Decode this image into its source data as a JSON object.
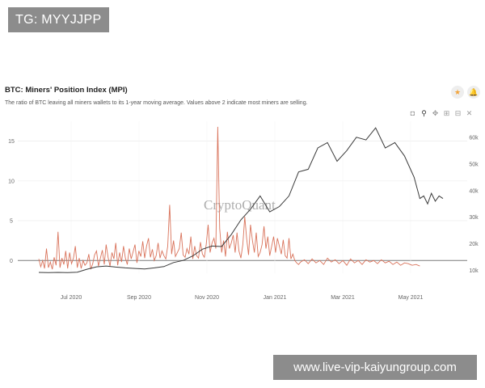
{
  "badges": {
    "telegram": "TG: MYYJJPP",
    "url": "www.live-vip-kaiyungroup.com"
  },
  "header": {
    "star_icon": "star-icon",
    "bell_icon": "bell-icon",
    "toolbar_icons": [
      "camera-icon",
      "zoom-icon",
      "pan-icon",
      "zoom-in-icon",
      "zoom-out-icon",
      "reset-axes-icon"
    ]
  },
  "chart_data": {
    "type": "line",
    "title": "BTC: Miners' Position Index (MPI)",
    "subtitle": "The ratio of BTC leaving all miners wallets to its 1-year moving average. Values above 2 indicate most miners are selling.",
    "watermark": "CryptoQuant",
    "x_ticks": [
      "Jul 2020",
      "Sep 2020",
      "Nov 2020",
      "Jan 2021",
      "Mar 2021",
      "May 2021"
    ],
    "y_left_ticks": [
      0,
      5,
      10,
      15
    ],
    "y_right_ticks": [
      "10k",
      "20k",
      "30k",
      "40k",
      "50k",
      "60k"
    ],
    "y_left_range": [
      -1.6,
      17.5
    ],
    "y_right_range": [
      9000,
      66000
    ],
    "x_range": [
      0,
      14
    ],
    "grid": true,
    "colors": {
      "mpi": "#d9735b",
      "price": "#3a3a3a"
    },
    "series": [
      {
        "axis": "left",
        "x": [
          0.0,
          0.1,
          0.2,
          0.3,
          0.4,
          0.5,
          0.6,
          0.7,
          0.8,
          0.9,
          1.0,
          1.1,
          1.2,
          1.3,
          1.4,
          1.5,
          1.6,
          1.7,
          1.8,
          1.9,
          2.0,
          2.1,
          2.2,
          2.3,
          2.4,
          2.5,
          2.6,
          2.7,
          2.8,
          2.9,
          3.0,
          3.1,
          3.2,
          3.3,
          3.4,
          3.5,
          3.6,
          3.7,
          3.8,
          3.9,
          4.0,
          4.1,
          4.2,
          4.3,
          4.4,
          4.5,
          4.6,
          4.7,
          4.8,
          4.9,
          5.0,
          5.1,
          5.2,
          5.3,
          5.4,
          5.5,
          5.6,
          5.7,
          5.8,
          5.9,
          6.0,
          6.1,
          6.2,
          6.3,
          6.4,
          6.5,
          6.6,
          6.7,
          6.8,
          6.9,
          7.0,
          7.1,
          7.2,
          7.3,
          7.4,
          7.5,
          7.6,
          7.7,
          7.8,
          7.9,
          8.0,
          8.1,
          8.2,
          8.3,
          8.4,
          8.5,
          8.6,
          8.7,
          8.8,
          8.9,
          9.0,
          9.1,
          9.2,
          9.3,
          9.4,
          9.5,
          9.6,
          9.7,
          9.8,
          9.9,
          10.0,
          10.1,
          10.2,
          10.3,
          10.4,
          10.5,
          10.6,
          10.7,
          10.8,
          10.9,
          11.0,
          11.1,
          11.2,
          11.3,
          11.4,
          11.5,
          11.6,
          11.7,
          11.8,
          11.9,
          12.0,
          12.1,
          12.2,
          12.3,
          12.4,
          12.5,
          12.6,
          12.7,
          12.8,
          12.9,
          13.0,
          13.1,
          13.2,
          13.3,
          13.4,
          13.5
        ],
        "values": [
          0.2,
          -0.8,
          0.0,
          -1.0,
          1.5,
          -0.9,
          -0.2,
          -1.1,
          0.4,
          -0.6,
          3.6,
          -0.9,
          0.3,
          -0.5,
          1.2,
          -1.0,
          1.0,
          -0.4,
          0.3,
          1.8,
          -0.9,
          0.3,
          -1.0,
          0.0,
          -0.6,
          -0.3,
          0.8,
          -1.1,
          -0.4,
          0.7,
          1.2,
          -0.7,
          0.3,
          1.3,
          -0.5,
          2.0,
          0.4,
          -0.7,
          1.0,
          0.2,
          2.2,
          -0.6,
          1.0,
          -0.2,
          1.8,
          0.3,
          -0.5,
          1.5,
          0.2,
          1.1,
          2.0,
          -0.3,
          1.2,
          0.5,
          2.4,
          0.3,
          1.8,
          2.8,
          0.4,
          1.4,
          0.0,
          0.6,
          2.2,
          0.3,
          1.2,
          0.6,
          0.2,
          1.8,
          7.0,
          0.8,
          2.5,
          0.5,
          1.0,
          1.5,
          3.5,
          0.7,
          0.4,
          1.5,
          0.8,
          3.0,
          0.2,
          1.8,
          0.6,
          0.3,
          2.3,
          0.8,
          0.4,
          2.0,
          4.5,
          1.0,
          2.2,
          2.8,
          1.5,
          16.8,
          4.0,
          1.0,
          2.5,
          0.5,
          3.6,
          1.5,
          2.2,
          3.2,
          1.0,
          3.5,
          1.2,
          0.3,
          2.0,
          5.5,
          2.8,
          0.7,
          4.5,
          2.5,
          1.0,
          3.5,
          0.5,
          1.0,
          2.0,
          4.3,
          1.5,
          3.0,
          0.6,
          1.8,
          3.0,
          1.0,
          2.8,
          1.8,
          0.8,
          2.6,
          0.6,
          0.3,
          2.8,
          0.2,
          0.8,
          0.0,
          -0.3,
          -0.5
        ],
        "x_note": "see extended arrays below"
      }
    ],
    "mpi_x": [
      0.0,
      0.1,
      0.2,
      0.3,
      0.4,
      0.5,
      0.6,
      0.7,
      0.8,
      0.9,
      1.0,
      1.1,
      1.2,
      1.3,
      1.4,
      1.5,
      1.6,
      1.7,
      1.8,
      1.9,
      2.0,
      2.1,
      2.2,
      2.3,
      2.4,
      2.5,
      2.6,
      2.7,
      2.8,
      2.9,
      3.0,
      3.1,
      3.2,
      3.3,
      3.4,
      3.5,
      3.6,
      3.7,
      3.8,
      3.9,
      4.0,
      4.1,
      4.2,
      4.3,
      4.4,
      4.5,
      4.6,
      4.7,
      4.8,
      4.9,
      5.0,
      5.1,
      5.2,
      5.3,
      5.4,
      5.5,
      5.6,
      5.7,
      5.8,
      5.9,
      6.0,
      6.1,
      6.2,
      6.3,
      6.4,
      6.5,
      6.6,
      6.7,
      6.8,
      6.9,
      7.0,
      7.1,
      7.2,
      7.3,
      7.4,
      7.5,
      7.6,
      7.7,
      7.8,
      7.9,
      8.0,
      8.1,
      8.2,
      8.3,
      8.4,
      8.5,
      8.6,
      8.7,
      8.8,
      8.9,
      9.0,
      9.1,
      9.2,
      9.3,
      9.4,
      9.5,
      9.6,
      9.7,
      9.8,
      9.9,
      10.0,
      10.1,
      10.2,
      10.3,
      10.4,
      10.5,
      10.6,
      10.7,
      10.8,
      10.9,
      11.0,
      11.1,
      11.2,
      11.3,
      11.4,
      11.5,
      11.6,
      11.7,
      11.8,
      11.9,
      12.0,
      12.1,
      12.2,
      12.3,
      12.4,
      12.5,
      12.6,
      12.7,
      12.8,
      12.9,
      13.0,
      13.1,
      13.2,
      13.3,
      13.4,
      13.5
    ],
    "mpi_values": [
      0.2,
      -0.8,
      0.0,
      -1.0,
      1.5,
      -0.9,
      -0.2,
      -1.1,
      0.4,
      -0.6,
      3.6,
      -0.9,
      0.3,
      -0.5,
      1.2,
      -1.0,
      1.0,
      -0.4,
      0.3,
      1.8,
      -0.9,
      0.3,
      -1.0,
      0.0,
      -0.6,
      -0.3,
      0.8,
      -1.1,
      -0.4,
      0.7,
      1.2,
      -0.7,
      0.3,
      1.3,
      -0.5,
      2.0,
      0.4,
      -0.7,
      1.0,
      0.2,
      2.2,
      -0.6,
      1.0,
      -0.2,
      1.8,
      0.3,
      -0.5,
      1.5,
      0.2,
      1.1,
      2.0,
      -0.3,
      1.2,
      0.5,
      2.4,
      0.3,
      1.8,
      2.8,
      0.4,
      1.4,
      0.0,
      0.6,
      2.2,
      0.3,
      1.2,
      0.6,
      0.2,
      1.8,
      7.0,
      0.8,
      2.5,
      0.5,
      1.0,
      1.5,
      3.5,
      0.7,
      0.4,
      1.5,
      0.8,
      3.0,
      0.2,
      1.8,
      0.6,
      0.3,
      2.3,
      0.8,
      0.4,
      2.0,
      4.5,
      1.0,
      2.2,
      2.8,
      1.5,
      16.8,
      4.0,
      1.0,
      2.5,
      0.5,
      3.6,
      1.5,
      2.2,
      3.2,
      1.0,
      3.5,
      1.2,
      0.3,
      2.0,
      5.5,
      2.8,
      0.7,
      4.5,
      2.5,
      1.0,
      3.5,
      0.5,
      1.0,
      2.0,
      4.3,
      1.5,
      3.0,
      0.6,
      1.8,
      3.0,
      1.0,
      2.8,
      1.8,
      0.8,
      2.6,
      0.6,
      0.3,
      2.8,
      0.2,
      0.8,
      0.0,
      -0.3,
      -0.5
    ],
    "mpi_tail_x": [
      13.6,
      13.8,
      14.0,
      14.2,
      14.4,
      14.6,
      14.8,
      15.0,
      15.2,
      15.4,
      15.6,
      15.8,
      16.0,
      16.2,
      16.4,
      16.6,
      16.8,
      17.0,
      17.2,
      17.4,
      17.6,
      17.8,
      18.0,
      18.2,
      18.4,
      18.6,
      18.8,
      19.0,
      19.2,
      19.4,
      19.6,
      19.8
    ],
    "mpi_tail_values": [
      -0.2,
      0.1,
      -0.4,
      0.2,
      -0.3,
      0.0,
      -0.5,
      0.3,
      -0.2,
      0.1,
      -0.4,
      0.0,
      -0.6,
      0.2,
      -0.3,
      0.0,
      -0.5,
      0.1,
      -0.2,
      0.0,
      -0.4,
      0.1,
      -0.3,
      -0.1,
      -0.5,
      -0.2,
      -0.6,
      -0.3,
      -0.4,
      -0.6,
      -0.5,
      -0.7
    ],
    "price_x": [
      0.0,
      0.5,
      1.0,
      1.5,
      2.0,
      2.5,
      3.0,
      3.5,
      4.0,
      4.5,
      5.0,
      5.5,
      6.0,
      6.5,
      7.0,
      7.5,
      8.0,
      8.5,
      9.0,
      9.5,
      10.0,
      10.5,
      11.0,
      11.5,
      12.0,
      12.5,
      13.0,
      13.5,
      14.0,
      14.5,
      15.0,
      15.5,
      16.0,
      16.5,
      17.0,
      17.5,
      18.0,
      18.5,
      19.0,
      19.5,
      19.8
    ],
    "price_values": [
      9300,
      9200,
      9300,
      9250,
      9400,
      10500,
      11400,
      11700,
      11300,
      11000,
      10800,
      10600,
      11000,
      11500,
      13000,
      13800,
      15500,
      18000,
      19200,
      19000,
      23500,
      29000,
      33000,
      38000,
      32000,
      34000,
      38000,
      47000,
      48000,
      56000,
      58000,
      51000,
      55000,
      60000,
      59000,
      63500,
      56000,
      58000,
      53000,
      45000,
      37000
    ],
    "price_extra_x": [
      20.0,
      20.2,
      20.4,
      20.6,
      20.8,
      21.0
    ],
    "price_extra_values": [
      38000,
      35000,
      39000,
      36000,
      38000,
      37000
    ]
  }
}
